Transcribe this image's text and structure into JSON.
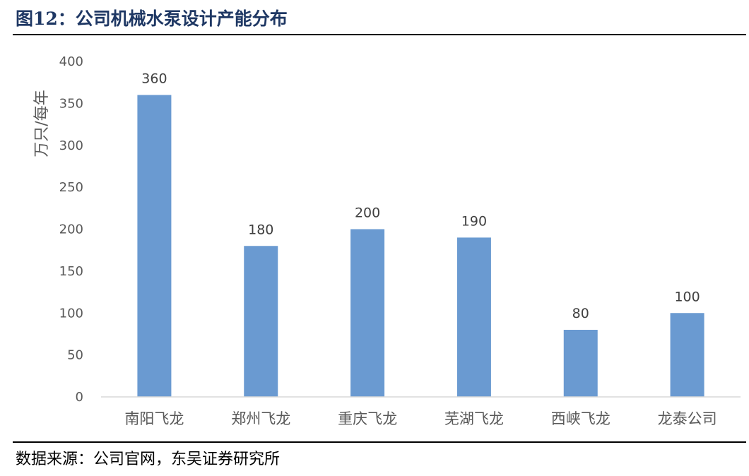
{
  "title": "图12：公司机械水泵设计产能分布",
  "source": "数据来源：公司官网，东吴证券研究所",
  "chart_data": {
    "type": "bar",
    "categories": [
      "南阳飞龙",
      "郑州飞龙",
      "重庆飞龙",
      "芜湖飞龙",
      "西峡飞龙",
      "龙泰公司"
    ],
    "values": [
      360,
      180,
      200,
      190,
      80,
      100
    ],
    "data_labels": [
      "360",
      "180",
      "200",
      "190",
      "80",
      "100"
    ],
    "ylabel": "万只/每年",
    "xlabel": "",
    "ylim": [
      0,
      400
    ],
    "yticks": [
      0,
      50,
      100,
      150,
      200,
      250,
      300,
      350,
      400
    ],
    "grid": false,
    "legend": "none",
    "bar_color": "#6a9ad1"
  }
}
